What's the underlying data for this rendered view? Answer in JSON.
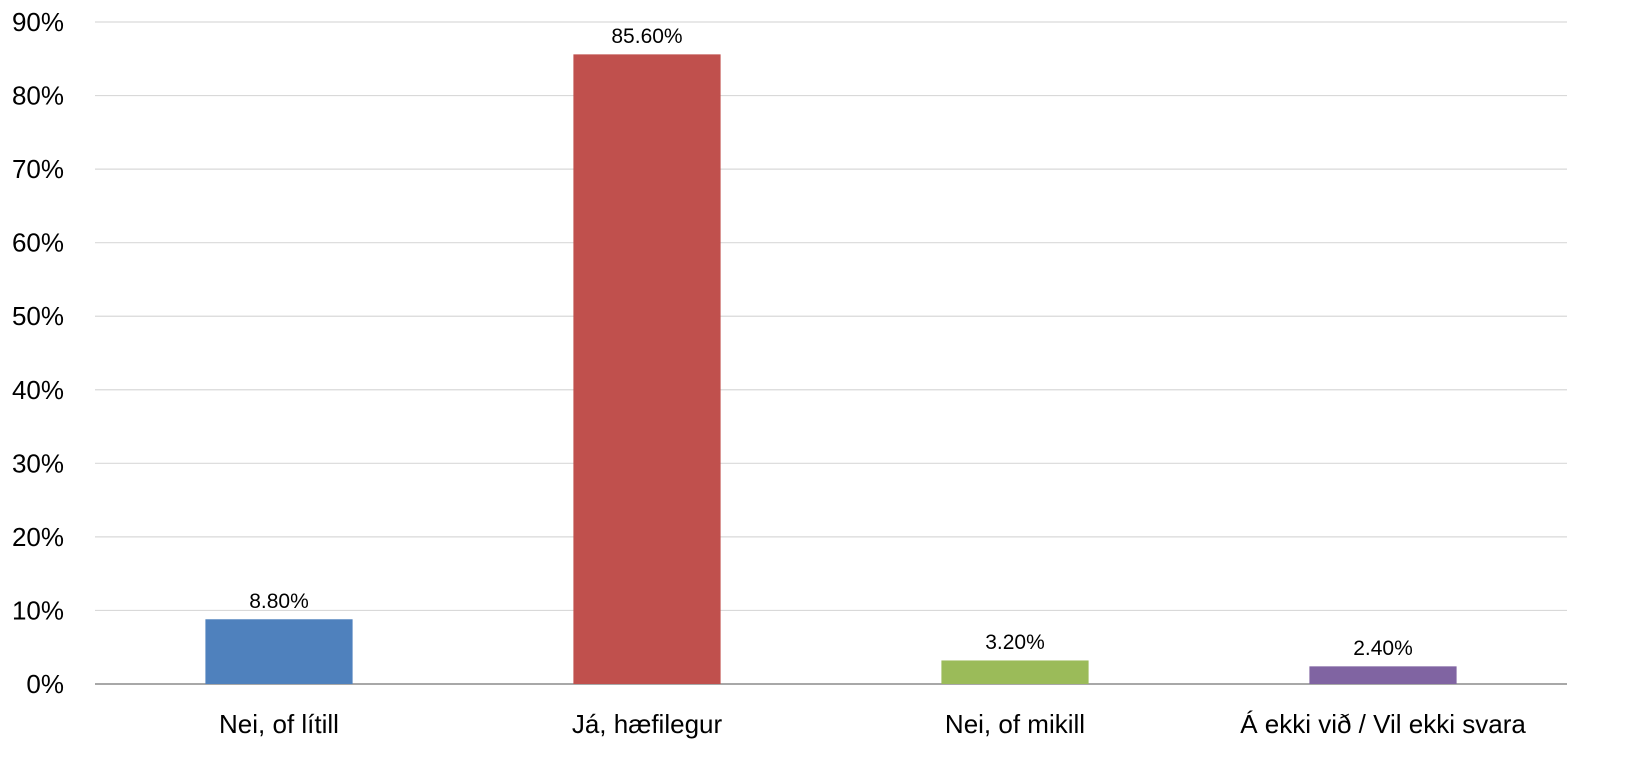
{
  "chart_data": {
    "type": "bar",
    "title": "",
    "xlabel": "",
    "ylabel": "",
    "categories": [
      "Nei, of lítill",
      "Já, hæfilegur",
      "Nei, of mikill",
      "Á ekki við / Vil ekki svara"
    ],
    "values": [
      8.8,
      85.6,
      3.2,
      2.4
    ],
    "data_labels": [
      "8.80%",
      "85.60%",
      "3.20%",
      "2.40%"
    ],
    "bar_colors": [
      "#4f81bd",
      "#c0504d",
      "#9bbb59",
      "#8064a2"
    ],
    "ylim": [
      0,
      90
    ],
    "yticks": [
      0,
      10,
      20,
      30,
      40,
      50,
      60,
      70,
      80,
      90
    ],
    "ytick_labels": [
      "0%",
      "10%",
      "20%",
      "30%",
      "40%",
      "50%",
      "60%",
      "70%",
      "80%",
      "90%"
    ],
    "grid": true,
    "legend": "none"
  }
}
